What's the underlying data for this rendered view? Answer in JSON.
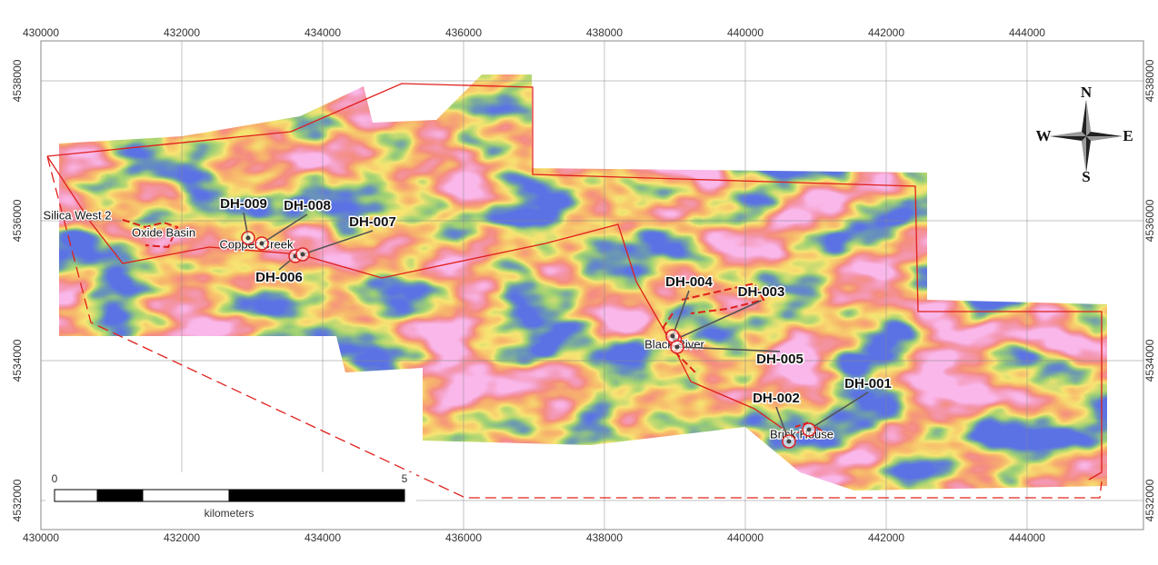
{
  "map": {
    "xlim": [
      430000,
      445652
    ],
    "ylim": [
      4531584,
      4538571
    ],
    "xticks": [
      430000,
      432000,
      434000,
      436000,
      438000,
      440000,
      442000,
      444000
    ],
    "yticks": [
      4532000,
      4534000,
      4536000,
      4538000
    ],
    "drillholes": [
      {
        "label": "DH-001",
        "x": 440903,
        "y": 4533013
      },
      {
        "label": "DH-002",
        "x": 440619,
        "y": 4532844
      },
      {
        "label": "DH-003",
        "x": 439000,
        "y": 4534300
      },
      {
        "label": "DH-004",
        "x": 438968,
        "y": 4534351
      },
      {
        "label": "DH-005",
        "x": 439032,
        "y": 4534195
      },
      {
        "label": "DH-006",
        "x": 433613,
        "y": 4535494
      },
      {
        "label": "DH-007",
        "x": 433716,
        "y": 4535519
      },
      {
        "label": "DH-008",
        "x": 433135,
        "y": 4535675
      },
      {
        "label": "DH-009",
        "x": 432942,
        "y": 4535753
      }
    ],
    "places": [
      {
        "name": "Silica West 2",
        "x": 430516,
        "y": 4536065
      },
      {
        "name": "Oxide Basin",
        "x": 431742,
        "y": 4535818
      },
      {
        "name": "Copper Creek",
        "x": 433058,
        "y": 4535649
      },
      {
        "name": "Black River",
        "x": 438994,
        "y": 4534221
      },
      {
        "name": "Brick House",
        "x": 440800,
        "y": 4532935
      }
    ],
    "compass": {
      "north": "N",
      "south": "S",
      "east": "E",
      "west": "W"
    },
    "scale_bar": {
      "start": 0,
      "end": 5,
      "unit": "kilometers"
    }
  }
}
